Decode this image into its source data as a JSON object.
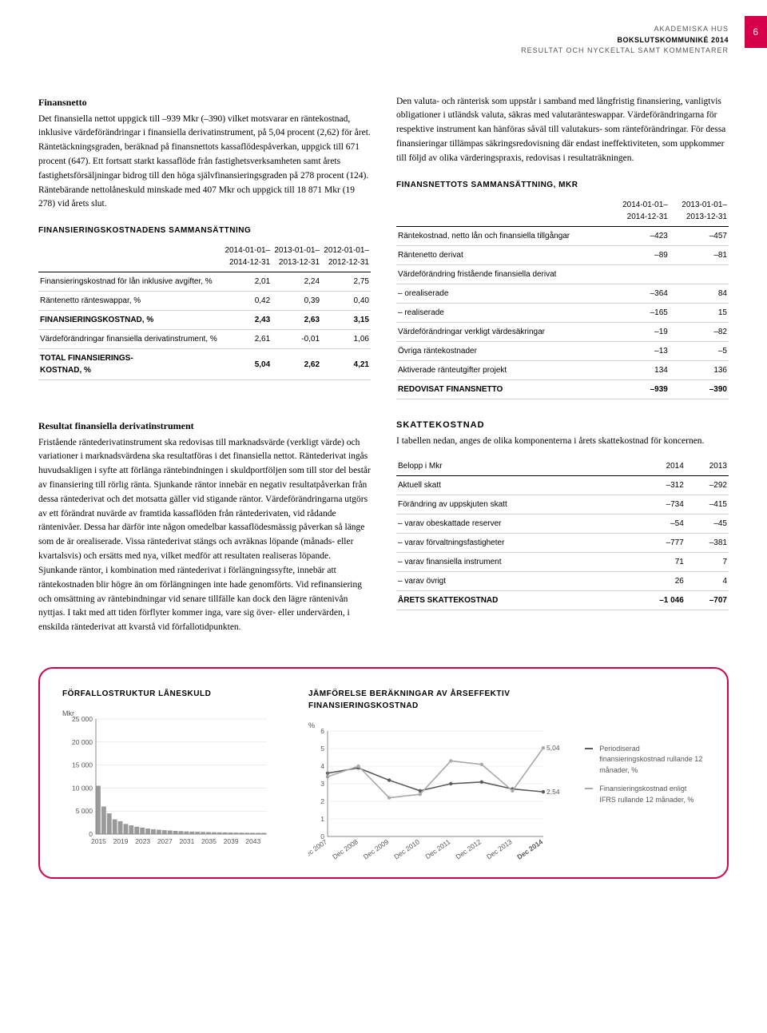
{
  "header": {
    "line1": "AKADEMISKA HUS",
    "line2": "BOKSLUTSKOMMUNIKÉ 2014",
    "line3": "RESULTAT OCH NYCKELTAL SAMT KOMMENTARER",
    "page_number": "6"
  },
  "left_block": {
    "title": "Finansnetto",
    "paragraph": "Det finansiella nettot uppgick till –939 Mkr (–390) vilket motsvarar en räntekostnad, inklusive värdeförändringar i finansiella derivatinstrument, på 5,04 procent (2,62) för året. Räntetäckningsgraden, beräknad på finansnettots kassaflödespåverkan, uppgick till 671 procent (647). Ett fortsatt starkt kassaflöde från fastighetsverksamheten samt årets fastighetsförsäljningar bidrog till den höga självfinansieringsgraden på 278 procent (124). Räntebärande nettolåneskuld minskade med 407 Mkr och uppgick till 18 871 Mkr (19 278) vid årets slut."
  },
  "right_block": {
    "paragraph": "Den valuta- och ränterisk som uppstår i samband med långfristig finansiering, vanligtvis obligationer i utländsk valuta, säkras med valutaränteswappar. Värdeförändringarna för respektive instrument kan hänföras såväl till valutakurs- som ränteförändringar. För dessa finansieringar tillämpas säkringsredovisning där endast ineffektiviteten, som uppkommer till följd av olika värderingspraxis, redovisas i resultaträkningen."
  },
  "table1": {
    "title": "FINANSIERINGSKOSTNADENS SAMMANSÄTTNING",
    "headers": [
      "",
      "2014-01-01–\n2014-12-31",
      "2013-01-01–\n2013-12-31",
      "2012-01-01–\n2012-12-31"
    ],
    "rows": [
      {
        "label": "Finansieringskostnad för lån inklusive avgifter, %",
        "vals": [
          "2,01",
          "2,24",
          "2,75"
        ],
        "bold": false
      },
      {
        "label": "Räntenetto ränteswappar, %",
        "vals": [
          "0,42",
          "0,39",
          "0,40"
        ],
        "bold": false
      },
      {
        "label": "FINANSIERINGSKOSTNAD, %",
        "vals": [
          "2,43",
          "2,63",
          "3,15"
        ],
        "bold": true
      },
      {
        "label": "Värdeförändringar finansiella derivatinstrument, %",
        "vals": [
          "2,61",
          "-0,01",
          "1,06"
        ],
        "bold": false
      },
      {
        "label": "TOTAL FINANSIERINGS-\nKOSTNAD, %",
        "vals": [
          "5,04",
          "2,62",
          "4,21"
        ],
        "bold": true
      }
    ]
  },
  "table2": {
    "title": "FINANSNETTOTS SAMMANSÄTTNING, MKR",
    "headers": [
      "",
      "2014-01-01–\n2014-12-31",
      "2013-01-01–\n2013-12-31"
    ],
    "rows": [
      {
        "label": "Räntekostnad, netto lån och finansiella tillgångar",
        "vals": [
          "–423",
          "–457"
        ]
      },
      {
        "label": "Räntenetto derivat",
        "vals": [
          "–89",
          "–81"
        ]
      },
      {
        "label": "Värdeförändring fristående finansiella derivat",
        "vals": [
          "",
          ""
        ]
      },
      {
        "label": "– orealiserade",
        "vals": [
          "–364",
          "84"
        ]
      },
      {
        "label": "– realiserade",
        "vals": [
          "–165",
          "15"
        ]
      },
      {
        "label": "Värdeförändringar verkligt värdesäkringar",
        "vals": [
          "–19",
          "–82"
        ]
      },
      {
        "label": "Övriga räntekostnader",
        "vals": [
          "–13",
          "–5"
        ]
      },
      {
        "label": "Aktiverade ränteutgifter projekt",
        "vals": [
          "134",
          "136"
        ]
      }
    ],
    "sum": {
      "label": "REDOVISAT FINANSNETTO",
      "vals": [
        "–939",
        "–390"
      ]
    }
  },
  "left_block2": {
    "title": "Resultat finansiella derivatinstrument",
    "paragraph": "Fristående räntederivatinstrument ska redovisas till marknadsvärde (verkligt värde) och variationer i marknadsvärdena ska resultatföras i det finansiella nettot. Räntederivat ingås huvudsakligen i syfte att förlänga räntebindningen i skuldportföljen som till stor del består av finansiering till rörlig ränta. Sjunkande räntor innebär en negativ resultatpåverkan från dessa räntederivat och det motsatta gäller vid stigande räntor. Värdeförändringarna utgörs av ett förändrat nuvärde av framtida kassaflöden från räntederivaten, vid rådande räntenivåer. Dessa har därför inte någon omedelbar kassaflödesmässig påverkan så länge som de är orealiserade. Vissa räntederivat stängs och avräknas löpande (månads- eller kvartalsvis) och ersätts med nya, vilket medför att resultaten realiseras löpande. Sjunkande räntor, i kombination med räntederivat i förlängningssyfte, innebär att räntekostnaden blir högre än om förlängningen inte hade genomförts. Vid refinansiering och omsättning av räntebindningar vid senare tillfälle kan dock den lägre räntenivån nyttjas. I takt med att tiden förflyter kommer inga, vare sig över- eller undervärden, i enskilda räntederivat att kvarstå vid förfallotidpunkten."
  },
  "right_block2": {
    "title": "SKATTEKOSTNAD",
    "paragraph": "I tabellen nedan, anges de olika komponenterna i årets skattekostnad för koncernen."
  },
  "table3": {
    "headers": [
      "Belopp i Mkr",
      "2014",
      "2013"
    ],
    "rows": [
      {
        "label": "Aktuell skatt",
        "vals": [
          "–312",
          "–292"
        ]
      },
      {
        "label": "Förändring av uppskjuten skatt",
        "vals": [
          "–734",
          "–415"
        ]
      },
      {
        "label": "– varav obeskattade reserver",
        "vals": [
          "–54",
          "–45"
        ]
      },
      {
        "label": "– varav förvaltningsfastigheter",
        "vals": [
          "–777",
          "–381"
        ]
      },
      {
        "label": "– varav finansiella instrument",
        "vals": [
          "71",
          "7"
        ]
      },
      {
        "label": "– varav övrigt",
        "vals": [
          "26",
          "4"
        ]
      }
    ],
    "sum": {
      "label": "ÅRETS SKATTEKOSTNAD",
      "vals": [
        "–1 046",
        "–707"
      ]
    }
  },
  "chart1": {
    "title": "FÖRFALLOSTRUKTUR LÅNESKULD",
    "y_label": "Mkr",
    "y_ticks": [
      0,
      5000,
      10000,
      15000,
      20000,
      25000
    ],
    "y_tick_labels": [
      "0",
      "5 000",
      "10 000",
      "15 000",
      "20 000",
      "25 000"
    ],
    "x_ticks": [
      2015,
      2019,
      2023,
      2027,
      2031,
      2035,
      2039,
      2043
    ],
    "bars": {
      "years": [
        2015,
        2016,
        2017,
        2018,
        2019,
        2020,
        2021,
        2022,
        2023,
        2024,
        2025,
        2026,
        2027,
        2028,
        2029,
        2030,
        2031,
        2032,
        2033,
        2034,
        2035,
        2036,
        2037,
        2038,
        2039,
        2040,
        2041,
        2042,
        2043,
        2044,
        2045
      ],
      "values": [
        10500,
        6000,
        4500,
        3200,
        2800,
        2200,
        1900,
        1600,
        1400,
        1200,
        1050,
        950,
        850,
        780,
        700,
        640,
        580,
        540,
        500,
        460,
        430,
        400,
        380,
        360,
        340,
        320,
        300,
        290,
        280,
        270,
        260
      ]
    },
    "bar_color": "#9a9a9a",
    "axis_color": "#888888",
    "grid_color": "#d8d8d8"
  },
  "chart2": {
    "title": "JÄMFÖRELSE BERÄKNINGAR AV ÅRSEFFEKTIV FINANSIERINGSKOSTNAD",
    "y_label": "%",
    "y_ticks": [
      0,
      1,
      2,
      3,
      4,
      5,
      6
    ],
    "x_labels": [
      "Dec 2007",
      "Dec 2008",
      "Dec 2009",
      "Dec 2010",
      "Dec 2011",
      "Dec 2012",
      "Dec 2013",
      "Dec 2014"
    ],
    "series": [
      {
        "name": "Periodiserad finansieringskostnad rullande 12 månader, %",
        "color": "#5b5b5b",
        "dash": "",
        "points": [
          3.6,
          3.9,
          3.2,
          2.6,
          3.0,
          3.1,
          2.7,
          2.54
        ],
        "end_label": "2,54"
      },
      {
        "name": "Finansieringskostnad enligt IFRS rullande 12 månader, %",
        "color": "#aaaaaa",
        "dash": "",
        "points": [
          3.4,
          4.0,
          2.2,
          2.4,
          4.3,
          4.1,
          2.6,
          5.04
        ],
        "end_label": "5,04"
      }
    ],
    "axis_color": "#888888",
    "grid_color": "#e0e0e0"
  }
}
